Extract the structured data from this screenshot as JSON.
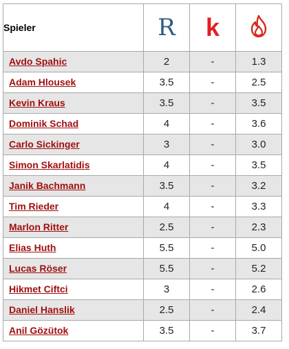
{
  "header": {
    "player_col": "Spieler",
    "sources": [
      {
        "icon": "r-logo-icon",
        "glyph": "R",
        "color": "#2f5a83"
      },
      {
        "icon": "k-logo-icon",
        "glyph": "k",
        "color": "#e21f26"
      },
      {
        "icon": "flame-icon",
        "glyph": "",
        "color": "#d62a1c"
      }
    ]
  },
  "rows": [
    {
      "name": "Avdo Spahic",
      "r": "2",
      "k": "-",
      "f": "1.3"
    },
    {
      "name": "Adam Hlousek",
      "r": "3.5",
      "k": "-",
      "f": "2.5"
    },
    {
      "name": "Kevin Kraus",
      "r": "3.5",
      "k": "-",
      "f": "3.5"
    },
    {
      "name": "Dominik Schad",
      "r": "4",
      "k": "-",
      "f": "3.6"
    },
    {
      "name": "Carlo Sickinger",
      "r": "3",
      "k": "-",
      "f": "3.0"
    },
    {
      "name": "Simon Skarlatidis",
      "r": "4",
      "k": "-",
      "f": "3.5"
    },
    {
      "name": "Janik Bachmann",
      "r": "3.5",
      "k": "-",
      "f": "3.2"
    },
    {
      "name": "Tim Rieder",
      "r": "4",
      "k": "-",
      "f": "3.3"
    },
    {
      "name": "Marlon Ritter",
      "r": "2.5",
      "k": "-",
      "f": "2.3"
    },
    {
      "name": "Elias Huth",
      "r": "5.5",
      "k": "-",
      "f": "5.0"
    },
    {
      "name": "Lucas Röser",
      "r": "5.5",
      "k": "-",
      "f": "5.2"
    },
    {
      "name": "Hikmet Ciftci",
      "r": "3",
      "k": "-",
      "f": "2.6"
    },
    {
      "name": "Daniel Hanslik",
      "r": "2.5",
      "k": "-",
      "f": "2.4"
    },
    {
      "name": "Anil Gözütok",
      "r": "3.5",
      "k": "-",
      "f": "3.7"
    }
  ]
}
